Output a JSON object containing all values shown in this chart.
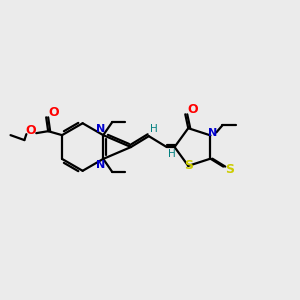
{
  "bg_color": "#ebebeb",
  "atom_colors": {
    "C": "#000000",
    "N": "#0000cc",
    "O": "#ff0000",
    "S": "#cccc00",
    "H": "#008080"
  },
  "figsize": [
    3.0,
    3.0
  ],
  "dpi": 100,
  "lw": 1.6,
  "fs": 7.5
}
